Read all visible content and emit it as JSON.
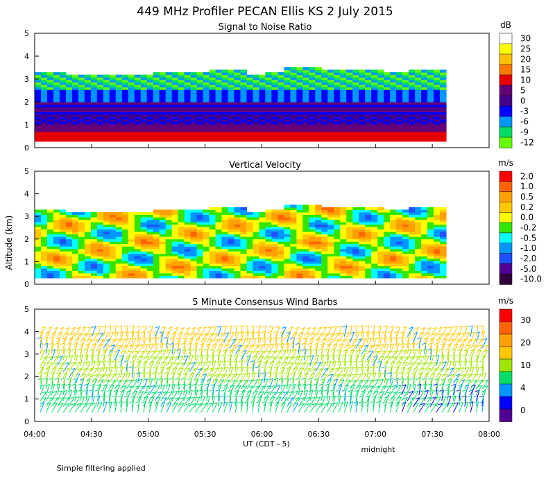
{
  "title": "449 MHz Profiler PECAN Ellis KS   2 July 2015",
  "ylabel": "Altitude (km)",
  "xlabel": "UT  (CDT - 5)",
  "midnight_label": "midnight",
  "footnote": "Simple filtering applied",
  "chart_data": [
    {
      "type": "heatmap",
      "title": "Signal to Noise Ratio",
      "y_ticks": [
        "0",
        "1",
        "2",
        "3",
        "4",
        "5"
      ],
      "ylim": [
        0,
        5
      ],
      "top_km": 3.3,
      "colorbar": {
        "unit": "dB",
        "labels": [
          "30",
          "25",
          "20",
          "15",
          "10",
          "5",
          "0",
          "-3",
          "-6",
          "-9",
          "-12"
        ],
        "colors": [
          "#ffffff",
          "#ffff00",
          "#ffc000",
          "#ff7800",
          "#e60000",
          "#640078",
          "#46008c",
          "#0000ff",
          "#0096ff",
          "#00dc64",
          "#64ff00"
        ]
      }
    },
    {
      "type": "heatmap",
      "title": "Vertical Velocity",
      "y_ticks": [
        "0",
        "1",
        "2",
        "3",
        "4",
        "5"
      ],
      "ylim": [
        0,
        5
      ],
      "top_km": 3.3,
      "colorbar": {
        "unit": "m/s",
        "labels": [
          "2.0",
          "1.0",
          "0.5",
          "0.2",
          "0.0",
          "-0.2",
          "-0.5",
          "-1.0",
          "-2.0",
          "-5.0",
          "-10.0"
        ],
        "colors": [
          "#ff0000",
          "#ff6400",
          "#ffa000",
          "#ffc800",
          "#ffff00",
          "#32e600",
          "#00ffff",
          "#0096ff",
          "#1e50ff",
          "#500096",
          "#32003c"
        ]
      }
    },
    {
      "type": "scatter",
      "title": "5 Minute Consensus Wind Barbs",
      "y_ticks": [
        "0",
        "1",
        "2",
        "3",
        "4",
        "5"
      ],
      "ylim": [
        0,
        5
      ],
      "x_ticks": [
        "04:00",
        "04:30",
        "05:00",
        "05:30",
        "06:00",
        "06:30",
        "07:00",
        "07:30",
        "08:00"
      ],
      "colorbar": {
        "unit": "m/s",
        "labels": [
          "30",
          "20",
          "10",
          "4",
          "0"
        ],
        "colors": [
          "#ff0000",
          "#ff6400",
          "#ffa000",
          "#ffc800",
          "#a0e600",
          "#00dc64",
          "#0096ff",
          "#0000ff",
          "#500096"
        ]
      }
    }
  ]
}
